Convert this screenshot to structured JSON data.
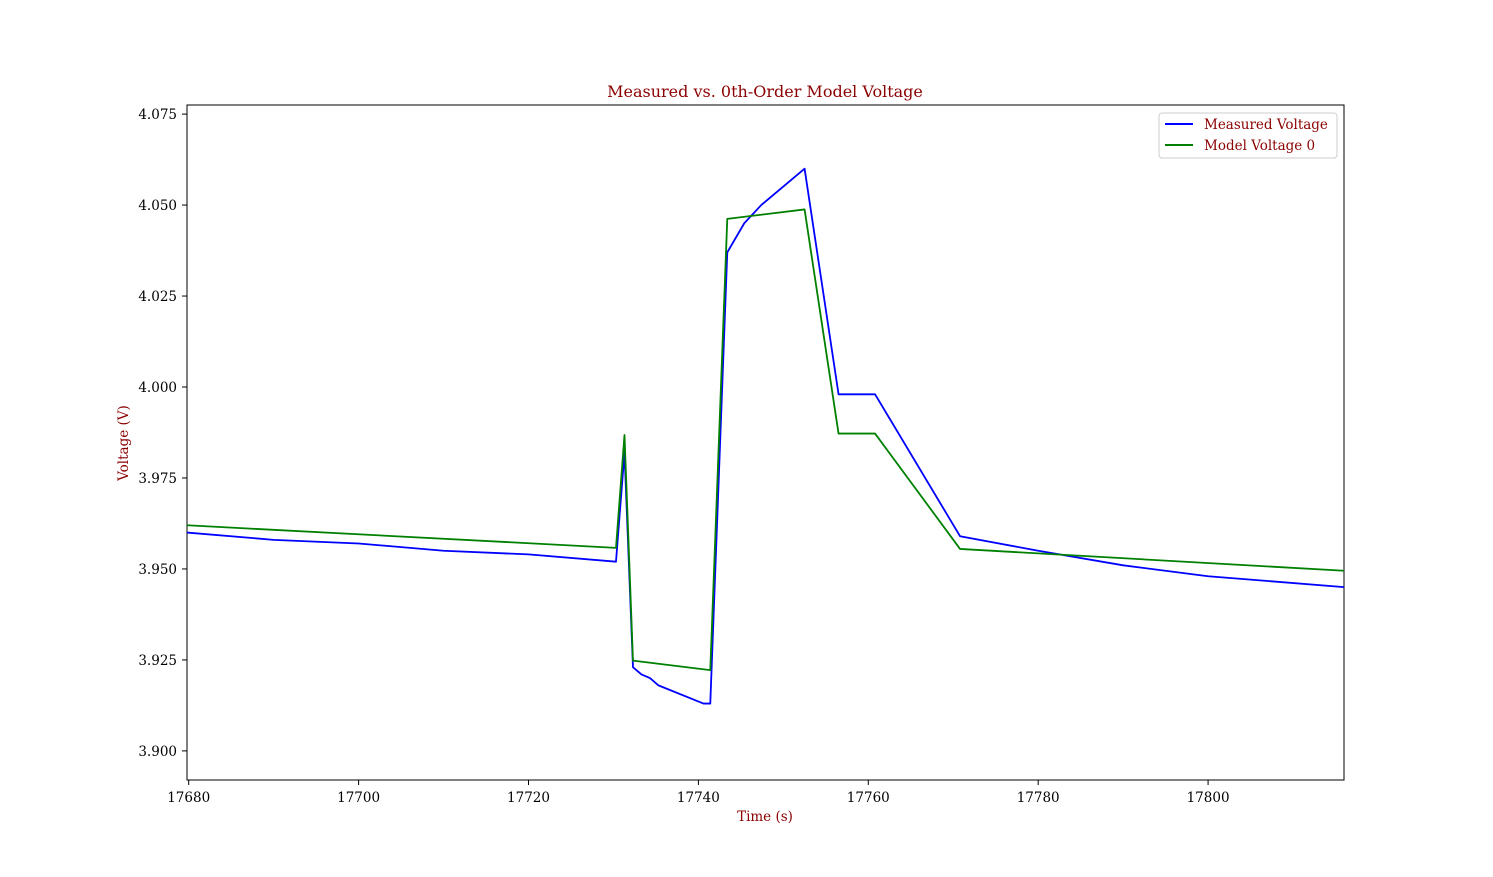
{
  "chart_data": {
    "type": "line",
    "title": "Measured vs. 0th-Order Model Voltage",
    "xlabel": "Time (s)",
    "ylabel": "Voltage (V)",
    "xlim": [
      17679.8,
      17816.0
    ],
    "ylim": [
      3.892,
      4.0775
    ],
    "xticks": [
      17680,
      17700,
      17720,
      17740,
      17760,
      17780,
      17800
    ],
    "yticks": [
      3.9,
      3.925,
      3.95,
      3.975,
      4.0,
      4.025,
      4.05,
      4.075
    ],
    "ytick_labels": [
      "3.900",
      "3.925",
      "3.950",
      "3.975",
      "4.000",
      "4.025",
      "4.050",
      "4.075"
    ],
    "grid": false,
    "legend_position": "top-right",
    "text_color": "#8b0000",
    "series": [
      {
        "name": "Measured Voltage",
        "color": "#0000ff",
        "x": [
          17679.8,
          17690,
          17700,
          17710,
          17720,
          17730.3,
          17731.3,
          17732.3,
          17733.3,
          17734.3,
          17735.3,
          17740.6,
          17741.4,
          17743.4,
          17745.4,
          17747.4,
          17752.5,
          17756.5,
          17760.8,
          17770.8,
          17780,
          17790,
          17800,
          17816.0
        ],
        "y": [
          3.96,
          3.958,
          3.957,
          3.955,
          3.954,
          3.952,
          3.982,
          3.923,
          3.921,
          3.92,
          3.918,
          3.913,
          3.913,
          4.037,
          4.045,
          4.05,
          4.06,
          3.998,
          3.998,
          3.959,
          3.955,
          3.951,
          3.948,
          3.945
        ]
      },
      {
        "name": "Model Voltage 0",
        "color": "#008000",
        "x": [
          17679.8,
          17730.3,
          17731.3,
          17732.3,
          17741.4,
          17743.4,
          17752.5,
          17756.5,
          17760.8,
          17770.8,
          17816.0
        ],
        "y": [
          3.962,
          3.9558,
          3.9868,
          3.9248,
          3.9222,
          4.0462,
          4.0488,
          3.9872,
          3.9872,
          3.9555,
          3.9495
        ]
      }
    ]
  }
}
